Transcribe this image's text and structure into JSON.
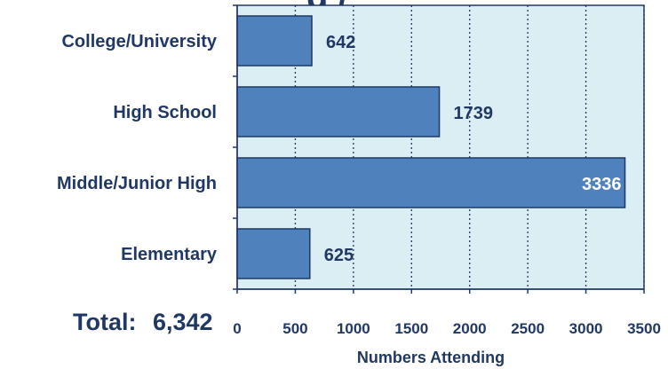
{
  "title_fragment": "g /",
  "total": {
    "label": "Total:",
    "value": "6,342"
  },
  "colors": {
    "plot_bg": "#daeef3",
    "bar_fill": "#4f81bd",
    "bar_stroke": "#1f3864",
    "text": "#1f3864",
    "grid": "#1f3864"
  },
  "chart_data": {
    "type": "bar",
    "orientation": "horizontal",
    "categories": [
      "College/University",
      "High School",
      "Middle/Junior High",
      "Elementary"
    ],
    "values": [
      642,
      1739,
      3336,
      625
    ],
    "data_labels": [
      "642",
      "1739",
      "3336",
      "625"
    ],
    "xlabel": "Numbers Attending",
    "ylabel": "",
    "xlim": [
      0,
      3500
    ],
    "xticks": [
      0,
      500,
      1000,
      1500,
      2000,
      2500,
      3000,
      3500
    ],
    "grid": true,
    "legend": "none"
  }
}
